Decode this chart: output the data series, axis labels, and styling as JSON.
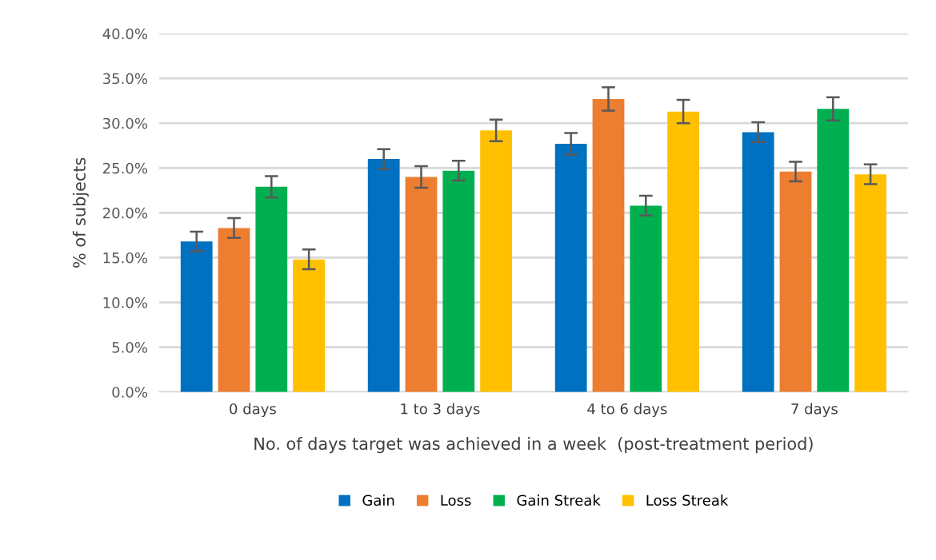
{
  "chart_data": {
    "type": "bar",
    "xlabel": "No. of days target was achieved in a week  (post-treatment period)",
    "ylabel": "% of subjects",
    "categories": [
      "0 days",
      "1 to 3 days",
      "4 to 6 days",
      "7 days"
    ],
    "series": [
      {
        "name": "Gain",
        "color": "#0070c0",
        "values": [
          16.8,
          26.0,
          27.7,
          29.0
        ],
        "errors": [
          1.1,
          1.1,
          1.2,
          1.1
        ]
      },
      {
        "name": "Loss",
        "color": "#ed7d31",
        "values": [
          18.3,
          24.0,
          32.7,
          24.6
        ],
        "errors": [
          1.1,
          1.2,
          1.3,
          1.1
        ]
      },
      {
        "name": "Gain Streak",
        "color": "#00b050",
        "values": [
          22.9,
          24.7,
          20.8,
          31.6
        ],
        "errors": [
          1.2,
          1.1,
          1.1,
          1.3
        ]
      },
      {
        "name": "Loss Streak",
        "color": "#ffc000",
        "values": [
          14.8,
          29.2,
          31.3,
          24.3
        ],
        "errors": [
          1.1,
          1.2,
          1.3,
          1.1
        ]
      }
    ],
    "ylim": [
      0,
      40
    ],
    "yticks": [
      {
        "value": 0,
        "label": "0.0%"
      },
      {
        "value": 5,
        "label": "5.0%"
      },
      {
        "value": 10,
        "label": "10.0%"
      },
      {
        "value": 15,
        "label": "15.0%"
      },
      {
        "value": 20,
        "label": "20.0%"
      },
      {
        "value": 25,
        "label": "25.0%"
      },
      {
        "value": 30,
        "label": "30.0%"
      },
      {
        "value": 35,
        "label": "35.0%"
      },
      {
        "value": 40,
        "label": "40.0%"
      }
    ],
    "grid": "y",
    "legend": "bottom"
  }
}
